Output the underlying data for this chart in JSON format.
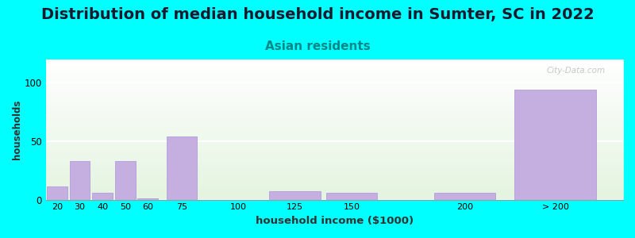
{
  "title": "Distribution of median household income in Sumter, SC in 2022",
  "subtitle": "Asian residents",
  "xlabel": "household income ($1000)",
  "ylabel": "households",
  "background_outer": "#00ffff",
  "bar_color": "#c5aee0",
  "bar_edge_color": "#b39ddb",
  "categories": [
    "20",
    "30",
    "40",
    "50",
    "60",
    "75",
    "100",
    "125",
    "150",
    "200",
    "> 200"
  ],
  "x_positions": [
    20,
    30,
    40,
    50,
    60,
    75,
    100,
    125,
    150,
    200,
    240
  ],
  "x_widths": [
    10,
    10,
    10,
    10,
    10,
    15,
    25,
    25,
    25,
    30,
    40
  ],
  "values": [
    11,
    33,
    6,
    33,
    1,
    54,
    0,
    7,
    6,
    6,
    94
  ],
  "ylim": [
    0,
    120
  ],
  "yticks": [
    0,
    50,
    100
  ],
  "xlim": [
    15,
    270
  ],
  "xtick_positions": [
    20,
    30,
    40,
    50,
    60,
    75,
    100,
    125,
    150,
    200,
    240
  ],
  "xtick_labels": [
    "20",
    "30",
    "40",
    "50",
    "60",
    "75",
    "100",
    "125",
    "150",
    "200",
    "> 200"
  ],
  "title_fontsize": 14,
  "subtitle_fontsize": 11,
  "subtitle_color": "#008888",
  "watermark": "City-Data.com"
}
